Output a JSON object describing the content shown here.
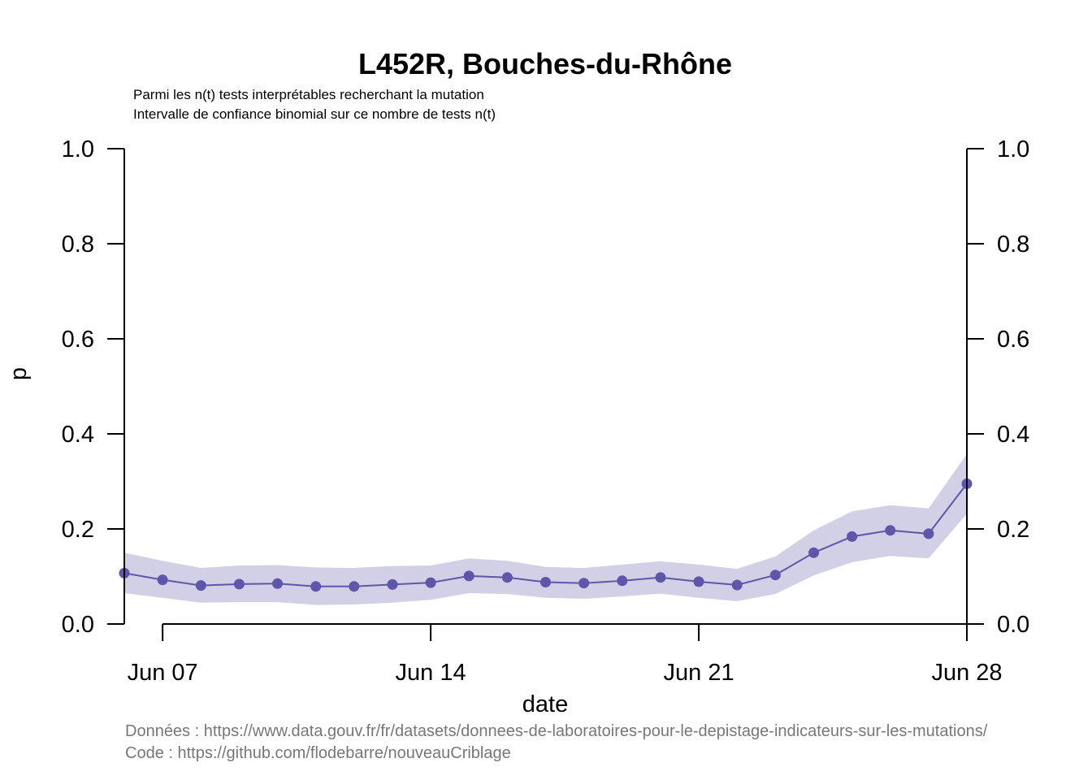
{
  "chart_data": {
    "type": "line",
    "title": "L452R, Bouches-du-Rhône",
    "subtitle_lines": [
      "Parmi les n(t) tests interprétables recherchant la mutation",
      "Intervalle de confiance binomial sur ce nombre de tests n(t)"
    ],
    "xlabel": "date",
    "ylabel": "p",
    "ylim": [
      0,
      1
    ],
    "yticks": [
      "0.0",
      "0.2",
      "0.4",
      "0.6",
      "0.8",
      "1.0"
    ],
    "ytick_values": [
      0,
      0.2,
      0.4,
      0.6,
      0.8,
      1.0
    ],
    "xlim": [
      "2021-06-06",
      "2021-06-28"
    ],
    "xtick_labels": [
      "Jun 07",
      "Jun 14",
      "Jun 21",
      "Jun 28"
    ],
    "xtick_dates": [
      "2021-06-07",
      "2021-06-14",
      "2021-06-21",
      "2021-06-28"
    ],
    "color": "#5e56a8",
    "band_color": "#d2d0e6",
    "grid": false,
    "legend": "none",
    "series": [
      {
        "x": [
          "2021-06-06",
          "2021-06-07",
          "2021-06-08",
          "2021-06-09",
          "2021-06-10",
          "2021-06-11",
          "2021-06-12",
          "2021-06-13",
          "2021-06-14",
          "2021-06-15",
          "2021-06-16",
          "2021-06-17",
          "2021-06-18",
          "2021-06-19",
          "2021-06-20",
          "2021-06-21",
          "2021-06-22",
          "2021-06-23",
          "2021-06-24",
          "2021-06-25",
          "2021-06-26",
          "2021-06-27",
          "2021-06-28"
        ],
        "values": [
          0.107,
          0.093,
          0.081,
          0.084,
          0.085,
          0.079,
          0.079,
          0.083,
          0.087,
          0.101,
          0.098,
          0.088,
          0.086,
          0.091,
          0.098,
          0.089,
          0.082,
          0.103,
          0.15,
          0.184,
          0.197,
          0.19,
          0.295
        ],
        "lower": [
          0.065,
          0.055,
          0.045,
          0.046,
          0.046,
          0.04,
          0.041,
          0.045,
          0.051,
          0.065,
          0.063,
          0.055,
          0.053,
          0.058,
          0.064,
          0.055,
          0.048,
          0.063,
          0.102,
          0.13,
          0.143,
          0.138,
          0.232
        ],
        "upper": [
          0.15,
          0.133,
          0.118,
          0.123,
          0.124,
          0.119,
          0.118,
          0.122,
          0.123,
          0.138,
          0.133,
          0.12,
          0.118,
          0.125,
          0.132,
          0.125,
          0.116,
          0.142,
          0.197,
          0.237,
          0.25,
          0.243,
          0.358
        ]
      }
    ]
  },
  "captions": {
    "data_source": "Données : https://www.data.gouv.fr/fr/datasets/donnees-de-laboratoires-pour-le-depistage-indicateurs-sur-les-mutations/",
    "code_source": "Code : https://github.com/flodebarre/nouveauCriblage"
  }
}
